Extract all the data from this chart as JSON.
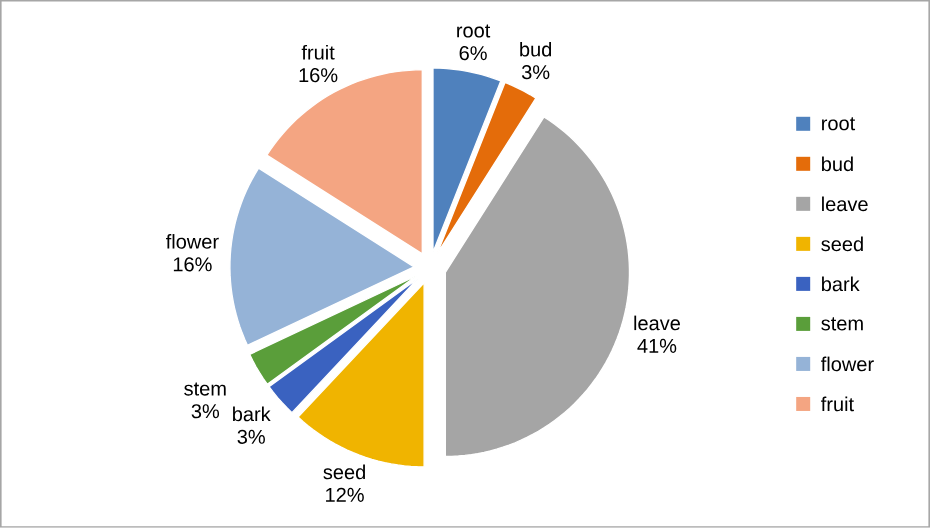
{
  "chart_data": {
    "type": "pie",
    "categories": [
      "root",
      "bud",
      "leave",
      "seed",
      "bark",
      "stem",
      "flower",
      "fruit"
    ],
    "values": [
      6,
      3,
      41,
      12,
      3,
      3,
      16,
      16
    ],
    "value_labels": [
      "6%",
      "3%",
      "41%",
      "12%",
      "3%",
      "3%",
      "16%",
      "16%"
    ],
    "colors": [
      "#4f81bd",
      "#e46c0a",
      "#a5a5a5",
      "#f0b400",
      "#3a62c0",
      "#5a9e3a",
      "#95b3d7",
      "#f4a582"
    ],
    "legend": "right"
  }
}
